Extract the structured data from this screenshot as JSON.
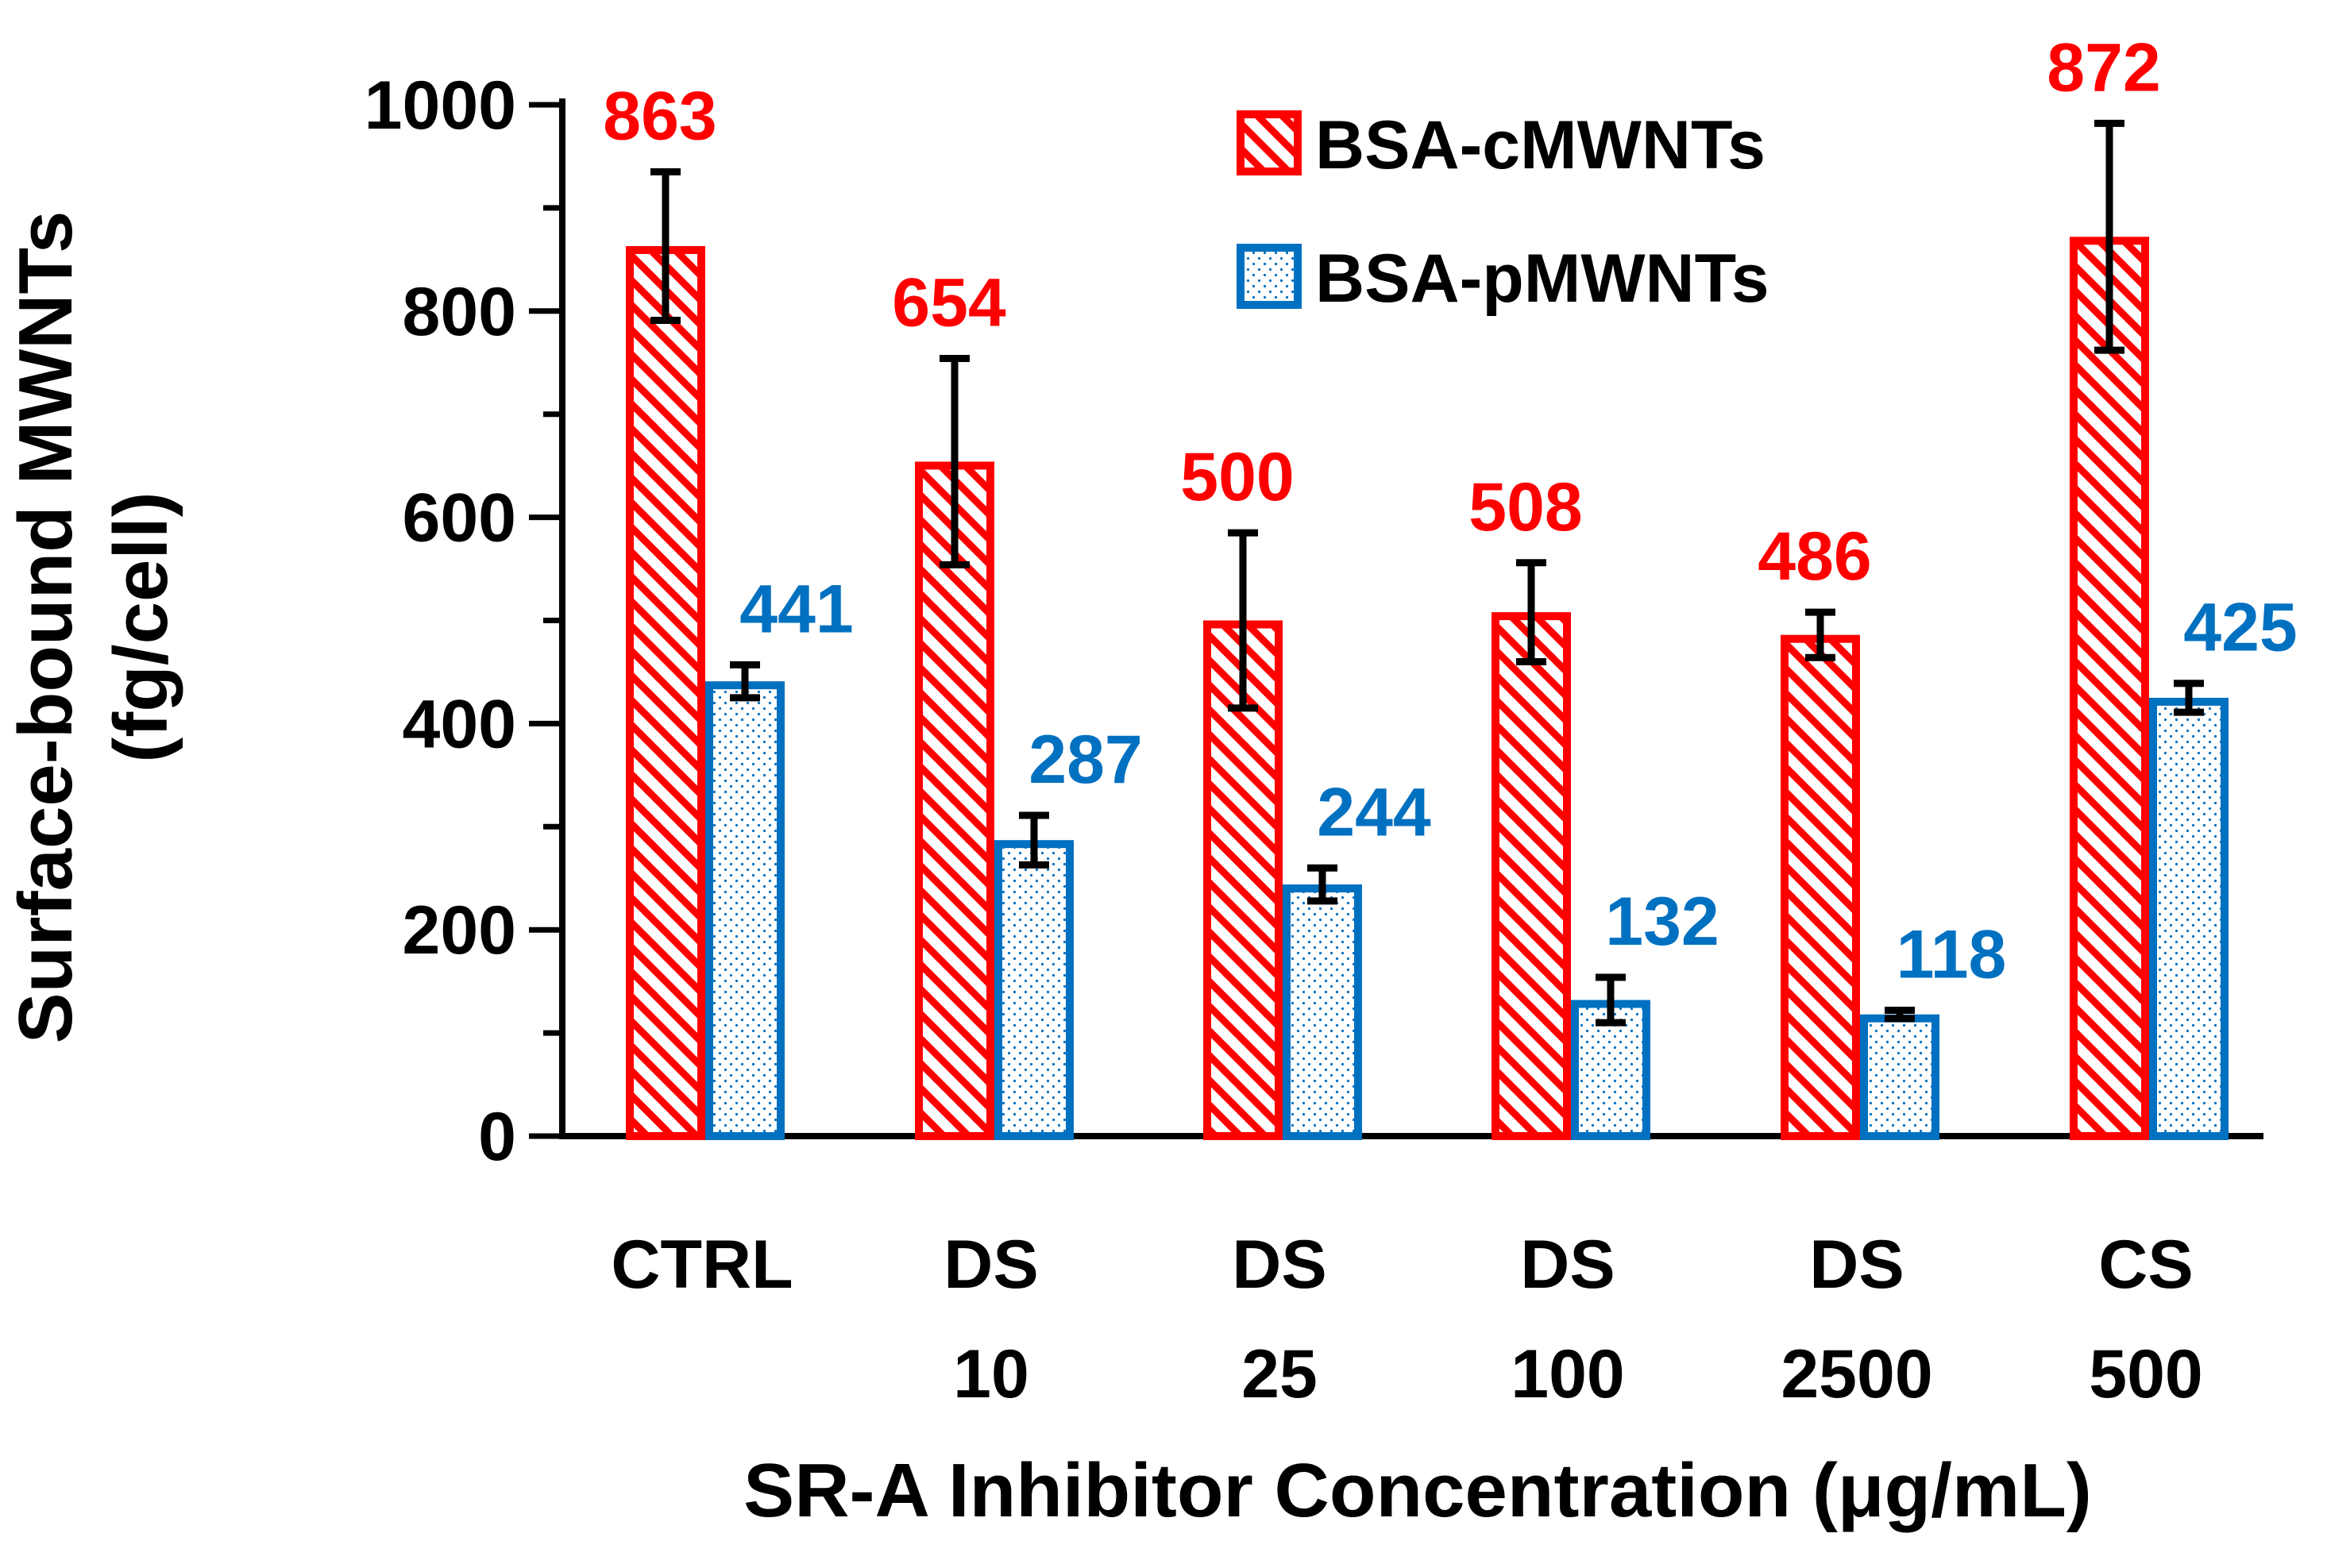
{
  "chart_data": {
    "type": "bar",
    "categories": [
      [
        "CTRL"
      ],
      [
        "DS",
        "10"
      ],
      [
        "DS",
        "25"
      ],
      [
        "DS",
        "100"
      ],
      [
        "DS",
        "2500"
      ],
      [
        "CS",
        "500"
      ]
    ],
    "series": [
      {
        "name": "BSA-cMWNTs",
        "values": [
          863,
          654,
          500,
          508,
          486,
          872
        ],
        "error": [
          72,
          100,
          85,
          48,
          22,
          110
        ],
        "labels": [
          "863",
          "654",
          "500",
          "508",
          "486",
          "872"
        ],
        "color": "#ff0000",
        "pattern": "diagonal-hatch"
      },
      {
        "name": "BSA-pMWNTs",
        "values": [
          441,
          287,
          244,
          132,
          118,
          425
        ],
        "error": [
          16,
          24,
          16,
          22,
          4,
          14
        ],
        "labels": [
          "441",
          "287",
          "244",
          "132",
          "118",
          "425"
        ],
        "color": "#0070c0",
        "pattern": "dots"
      }
    ],
    "ylabel_lines": [
      "Surface-bound MWNTs",
      "(fg/cell)"
    ],
    "xlabel": "SR-A Inhibitor Concentration (μg/mL)",
    "ylim": [
      0,
      1000
    ],
    "yticks": [
      "0",
      "200",
      "400",
      "600",
      "800",
      "1000"
    ],
    "grid": false,
    "legend_position": "top-right",
    "error_bar_color": "#000000"
  }
}
